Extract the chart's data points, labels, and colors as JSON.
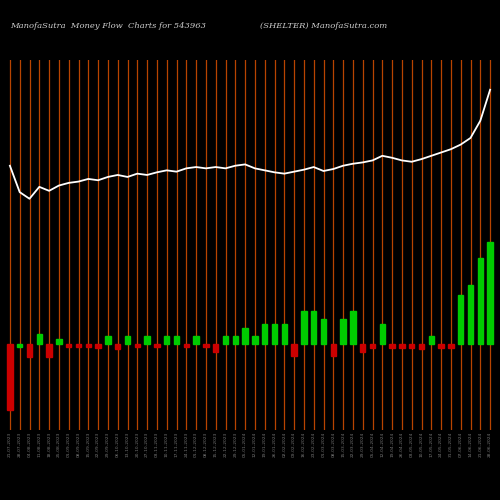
{
  "title_left": "ManofaSutra  Money Flow  Charts for 543963",
  "title_right": "(SHELTER) ManofaSutra.com",
  "bg_color": "#000000",
  "line_color": "#ffffff",
  "bar_pos_color": "#00cc00",
  "bar_neg_color": "#cc0000",
  "orange_line_color": "#b84400",
  "n_bars": 50,
  "dates": [
    "21-07-2023",
    "28-07-2023",
    "04-08-2023",
    "11-08-2023",
    "18-08-2023",
    "25-08-2023",
    "01-09-2023",
    "08-09-2023",
    "15-09-2023",
    "22-09-2023",
    "29-09-2023",
    "06-10-2023",
    "13-10-2023",
    "20-10-2023",
    "27-10-2023",
    "03-11-2023",
    "10-11-2023",
    "17-11-2023",
    "24-11-2023",
    "01-12-2023",
    "08-12-2023",
    "15-12-2023",
    "22-12-2023",
    "29-12-2023",
    "05-01-2024",
    "12-01-2024",
    "19-01-2024",
    "26-01-2024",
    "02-02-2024",
    "09-02-2024",
    "16-02-2024",
    "23-02-2024",
    "01-03-2024",
    "08-03-2024",
    "15-03-2024",
    "22-03-2024",
    "29-03-2024",
    "05-04-2024",
    "12-04-2024",
    "19-04-2024",
    "26-04-2024",
    "03-05-2024",
    "10-05-2024",
    "17-05-2024",
    "24-05-2024",
    "31-05-2024",
    "07-06-2024",
    "14-06-2024",
    "21-06-2024",
    "28-06-2024"
  ],
  "line_values": [
    270,
    230,
    220,
    238,
    232,
    240,
    244,
    246,
    250,
    248,
    253,
    256,
    253,
    258,
    256,
    260,
    263,
    261,
    266,
    268,
    266,
    268,
    266,
    270,
    272,
    266,
    263,
    260,
    258,
    261,
    264,
    268,
    262,
    265,
    270,
    273,
    275,
    278,
    285,
    282,
    278,
    276,
    280,
    285,
    290,
    295,
    302,
    312,
    338,
    385
  ],
  "bar_values": [
    -100,
    -5,
    -20,
    15,
    -20,
    8,
    -5,
    -5,
    -5,
    -6,
    12,
    -8,
    12,
    -5,
    12,
    -5,
    12,
    12,
    -5,
    12,
    -5,
    -12,
    12,
    12,
    25,
    12,
    30,
    30,
    30,
    -18,
    50,
    50,
    38,
    -18,
    38,
    50,
    -12,
    -6,
    30,
    -6,
    -6,
    -6,
    -8,
    12,
    -6,
    -6,
    75,
    90,
    130,
    155
  ],
  "bar_colors": [
    "red",
    "green",
    "red",
    "green",
    "red",
    "green",
    "red",
    "red",
    "red",
    "red",
    "green",
    "red",
    "green",
    "red",
    "green",
    "red",
    "green",
    "green",
    "red",
    "green",
    "red",
    "red",
    "green",
    "green",
    "green",
    "green",
    "green",
    "green",
    "green",
    "red",
    "green",
    "green",
    "green",
    "red",
    "green",
    "green",
    "red",
    "red",
    "green",
    "red",
    "red",
    "red",
    "red",
    "green",
    "red",
    "red",
    "green",
    "green",
    "green",
    "green"
  ]
}
